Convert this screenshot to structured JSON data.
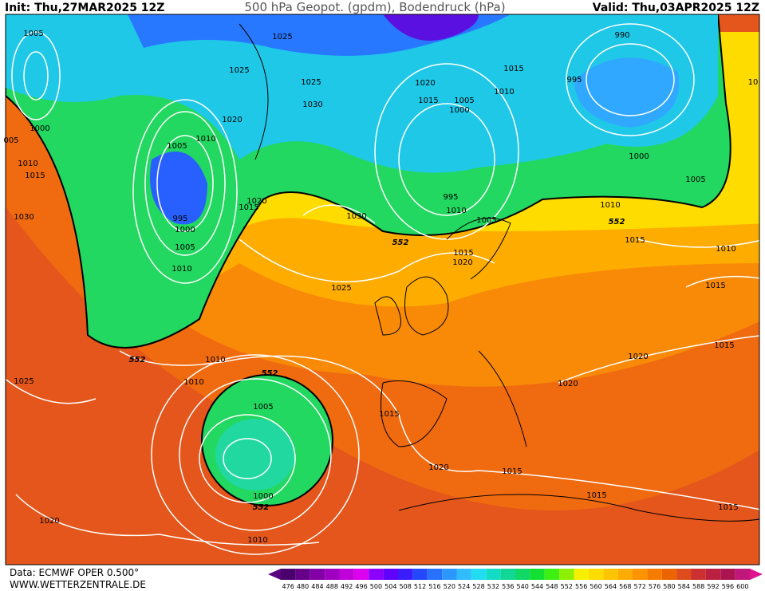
{
  "header": {
    "init": "Init: Thu,27MAR2025 12Z",
    "title": "500 hPa Geopot. (gpdm), Bodendruck (hPa)",
    "valid": "Valid: Thu,03APR2025 12Z"
  },
  "isobar_labels": [
    "1005",
    "1025",
    "1025",
    "1025",
    "1030",
    "1020",
    "1015",
    "1005",
    "1000",
    "1015",
    "1010",
    "990",
    "995",
    "1000",
    "1005",
    "1010",
    "1000",
    "1010",
    "1015",
    "1030",
    "1020",
    "1010",
    "1005",
    "995",
    "1000",
    "1005",
    "1010",
    "1020",
    "1015",
    "1030",
    "995",
    "1010",
    "1005",
    "1015",
    "1020",
    "1025",
    "1015",
    "1010",
    "1015",
    "1020",
    "1015",
    "1010",
    "1010",
    "1025",
    "1020",
    "1005",
    "1015",
    "1000",
    "1020",
    "1015",
    "1015",
    "1015",
    "1020",
    "1010",
    "10",
    "005"
  ],
  "contour_labels": [
    "552",
    "552",
    "552",
    "552",
    "552"
  ],
  "scale": {
    "labels": [
      476,
      480,
      484,
      488,
      492,
      496,
      500,
      504,
      508,
      512,
      516,
      520,
      524,
      528,
      532,
      536,
      540,
      544,
      548,
      552,
      556,
      560,
      564,
      568,
      572,
      576,
      580,
      584,
      588,
      592,
      596,
      600
    ],
    "colors": [
      "#4a006c",
      "#66008a",
      "#8200a6",
      "#a000c0",
      "#c000d8",
      "#dc00ee",
      "#8c00ff",
      "#6000ff",
      "#3a1cff",
      "#2448ff",
      "#2870ff",
      "#2c98ff",
      "#30bcff",
      "#22dcf2",
      "#12dcc4",
      "#10d894",
      "#10d864",
      "#14e034",
      "#3cf012",
      "#8cf000",
      "#f4f000",
      "#ffdc00",
      "#ffc400",
      "#ffac00",
      "#ff9400",
      "#f67c00",
      "#ec6400",
      "#de4c1c",
      "#cc3030",
      "#bc2040",
      "#ac1450",
      "#c0187a"
    ]
  },
  "footer": {
    "source": "Data: ECMWF OPER 0.500°",
    "site": "WWW.WETTERZENTRALE.DE"
  }
}
